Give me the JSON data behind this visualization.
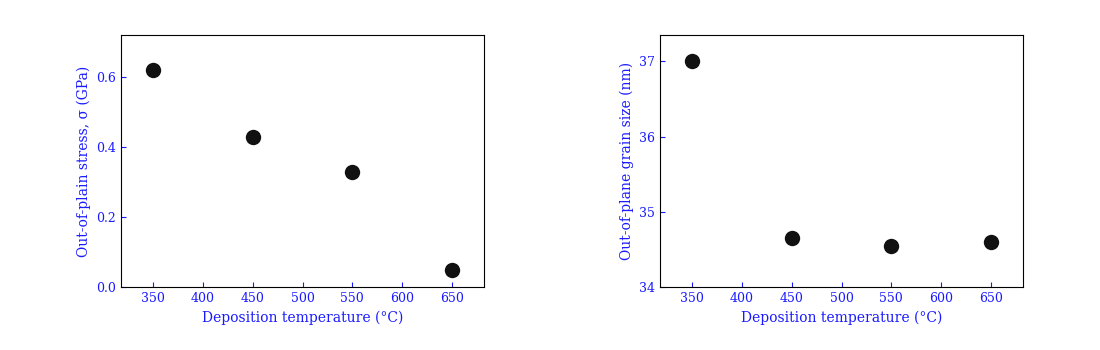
{
  "plot1": {
    "x": [
      350,
      450,
      550,
      650
    ],
    "y": [
      0.62,
      0.43,
      0.33,
      0.05
    ],
    "xlabel": "Deposition temperature (°C)",
    "ylabel": "Out-of-plain stress, σ (GPa)",
    "xlim": [
      318,
      682
    ],
    "ylim": [
      0.0,
      0.72
    ],
    "xticks": [
      350,
      400,
      450,
      500,
      550,
      600,
      650
    ],
    "yticks": [
      0.0,
      0.2,
      0.4,
      0.6
    ],
    "xlabel_color": "#1a1aff",
    "ylabel_color": "#1a1aff",
    "tick_color": "#1a1aff"
  },
  "plot2": {
    "x": [
      350,
      450,
      550,
      650
    ],
    "y": [
      37.0,
      34.65,
      34.55,
      34.6
    ],
    "xlabel": "Deposition temperature (°C)",
    "ylabel": "Out-of-plane grain size (nm)",
    "xlim": [
      318,
      682
    ],
    "ylim": [
      34.0,
      37.35
    ],
    "xticks": [
      350,
      400,
      450,
      500,
      550,
      600,
      650
    ],
    "yticks": [
      34,
      35,
      36,
      37
    ],
    "xlabel_color": "#1a1aff",
    "ylabel_color": "#1a1aff",
    "tick_color": "#1a1aff"
  },
  "marker": "o",
  "marker_color": "#111111",
  "marker_size": 7,
  "background_color": "#ffffff",
  "axis_color": "#000000",
  "font_size": 9,
  "label_font_size": 10
}
